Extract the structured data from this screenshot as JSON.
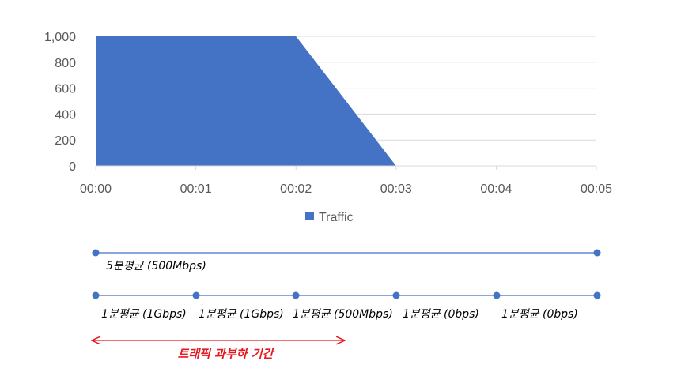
{
  "chart_data": {
    "type": "area",
    "x": [
      "00:00",
      "00:01",
      "00:02",
      "00:03",
      "00:04",
      "00:05"
    ],
    "series": [
      {
        "name": "Traffic",
        "values": [
          1000,
          1000,
          1000,
          0,
          0,
          0
        ],
        "color": "#4472C4"
      }
    ],
    "yticks": [
      "0",
      "200",
      "400",
      "600",
      "800",
      "1,000"
    ],
    "ylim": [
      0,
      1000
    ],
    "grid": true,
    "legend_position": "bottom"
  },
  "timeline": {
    "five_min": {
      "label": "5분평균 (500Mbps)"
    },
    "one_min": {
      "labels": [
        "1분평균 (1Gbps)",
        "1분평균 (1Gbps)",
        "1분평균 (500Mbps)",
        "1분평균 (0bps)",
        "1분평균 (0bps)"
      ]
    },
    "overload": {
      "label": "트래픽 과부하 기간",
      "color": "#E8161E"
    },
    "line_color": "#4472C4"
  }
}
